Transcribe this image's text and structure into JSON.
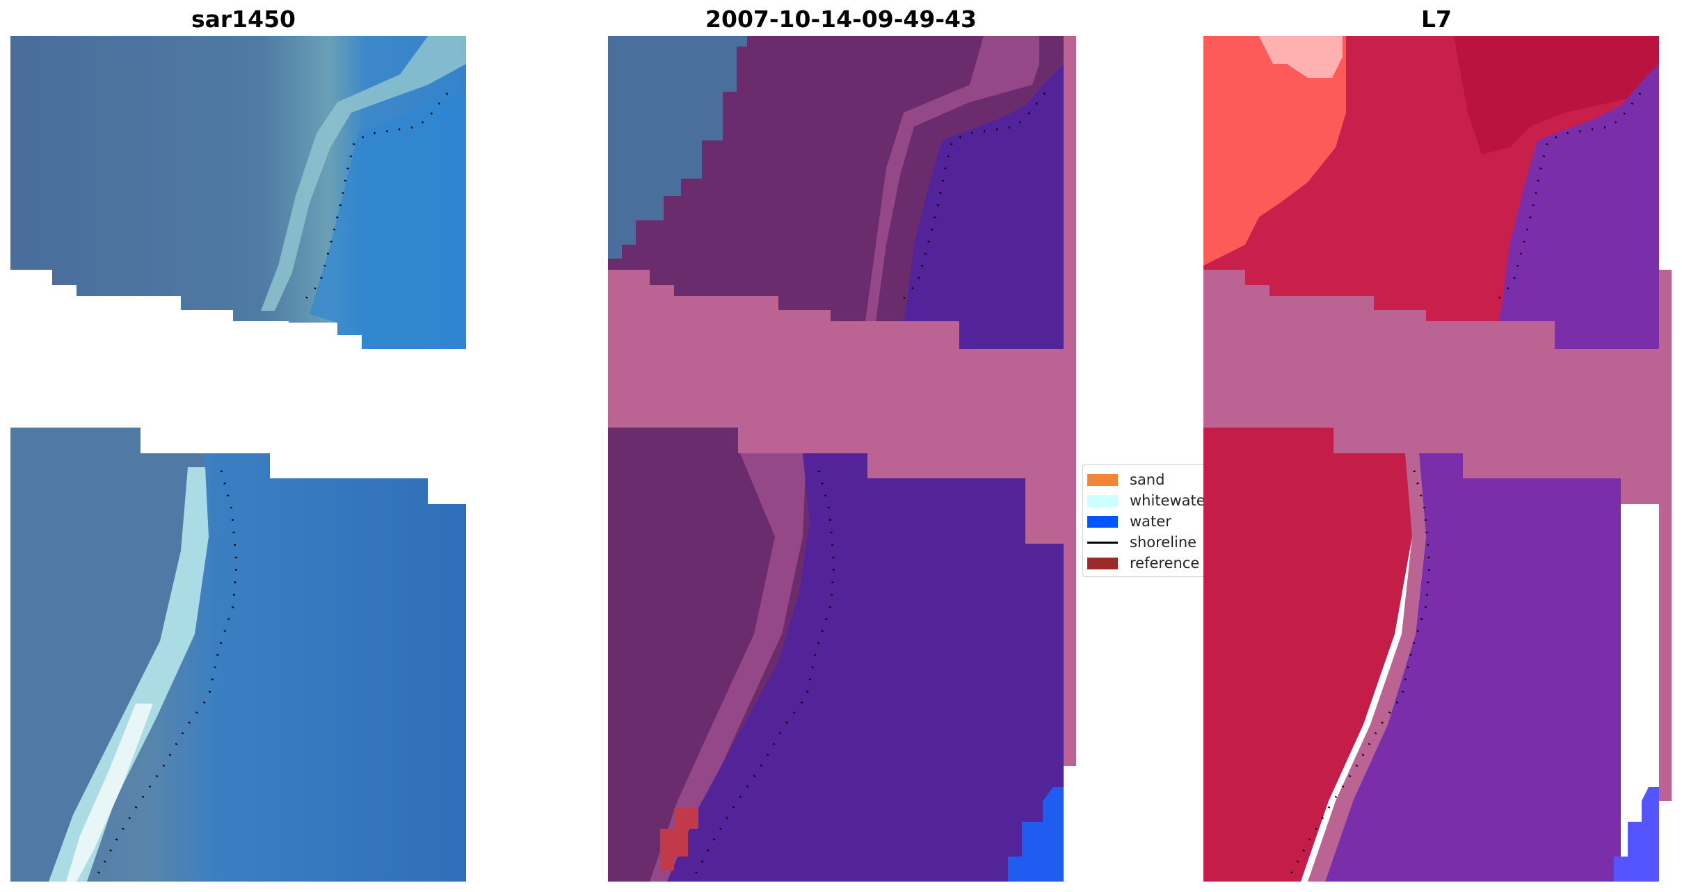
{
  "panels": {
    "left_title": "sar1450",
    "middle_title": "2007-10-14-09-49-43",
    "right_title": "L7"
  },
  "legend": {
    "items": [
      {
        "label": "sand",
        "color": "#f58536",
        "kind": "patch"
      },
      {
        "label": "whitewater",
        "color": "#ccffff",
        "kind": "patch"
      },
      {
        "label": "water",
        "color": "#0055ff",
        "kind": "patch"
      },
      {
        "label": "shoreline",
        "color": "#000000",
        "kind": "line"
      },
      {
        "label": "reference",
        "color": "#9b2b2b",
        "kind": "patch"
      }
    ]
  },
  "colors": {
    "sar_land": "#4a6f9c",
    "sar_water": "#3a7fc4",
    "sar_whitewater": "#c8eef0",
    "class_land": "#6b2c6e",
    "class_water": "#522399",
    "class_nodata": "#bb6493",
    "class_ocean_blue": "#1f5cf0",
    "l7_land": "#c8204a",
    "l7_water": "#7a2eaa",
    "l7_sand": "#ff6a6a",
    "shoreline_dots": "#000000"
  }
}
